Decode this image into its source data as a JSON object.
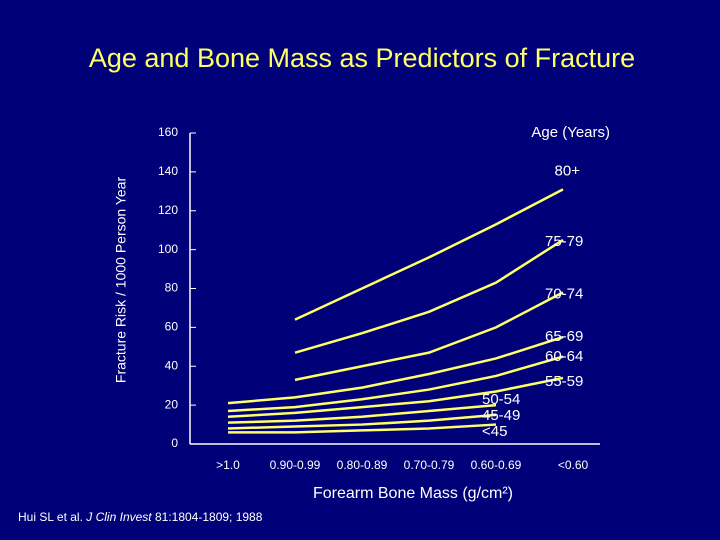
{
  "chart_data": {
    "type": "line",
    "title": "Age and Bone Mass as Predictors of Fracture",
    "legend_title": "Age (Years)",
    "y_label": "Fracture Risk / 1000 Person Year",
    "x_label": "Forearm Bone Mass (g/cm²)",
    "source": {
      "authors": "Hui SL et al.",
      "journal": "J Clin Invest",
      "citation": "81:1804-1809; 1988"
    },
    "categories": [
      ">1.0",
      "0.90-0.99",
      "0.80-0.89",
      "0.70-0.79",
      "0.60-0.69",
      "<0.60"
    ],
    "ylim": [
      0,
      160
    ],
    "yticks": [
      0,
      20,
      40,
      60,
      80,
      100,
      120,
      140,
      160
    ],
    "series": [
      {
        "name": "80+",
        "color": "#ffff66",
        "values": [
          null,
          64,
          80,
          96,
          113,
          131
        ]
      },
      {
        "name": "75-79",
        "color": "#ffff66",
        "values": [
          null,
          47,
          57,
          68,
          83,
          105
        ]
      },
      {
        "name": "70-74",
        "color": "#ffff66",
        "values": [
          null,
          33,
          40,
          47,
          60,
          78
        ]
      },
      {
        "name": "65-69",
        "color": "#ffff66",
        "values": [
          21,
          24,
          29,
          36,
          44,
          55
        ]
      },
      {
        "name": "60-64",
        "color": "#ffff66",
        "values": [
          17,
          19,
          23,
          28,
          35,
          45
        ]
      },
      {
        "name": "55-59",
        "color": "#ffff66",
        "values": [
          14,
          16,
          19,
          22,
          27,
          34
        ]
      },
      {
        "name": "50-54",
        "color": "#ffff66",
        "values": [
          11,
          12,
          14,
          17,
          20,
          null
        ]
      },
      {
        "name": "45-49",
        "color": "#ffff66",
        "values": [
          8,
          9,
          10,
          12,
          15,
          null
        ]
      },
      {
        "name": "<45",
        "color": "#ffff66",
        "values": [
          6,
          6,
          7,
          8,
          10,
          null
        ]
      }
    ]
  }
}
